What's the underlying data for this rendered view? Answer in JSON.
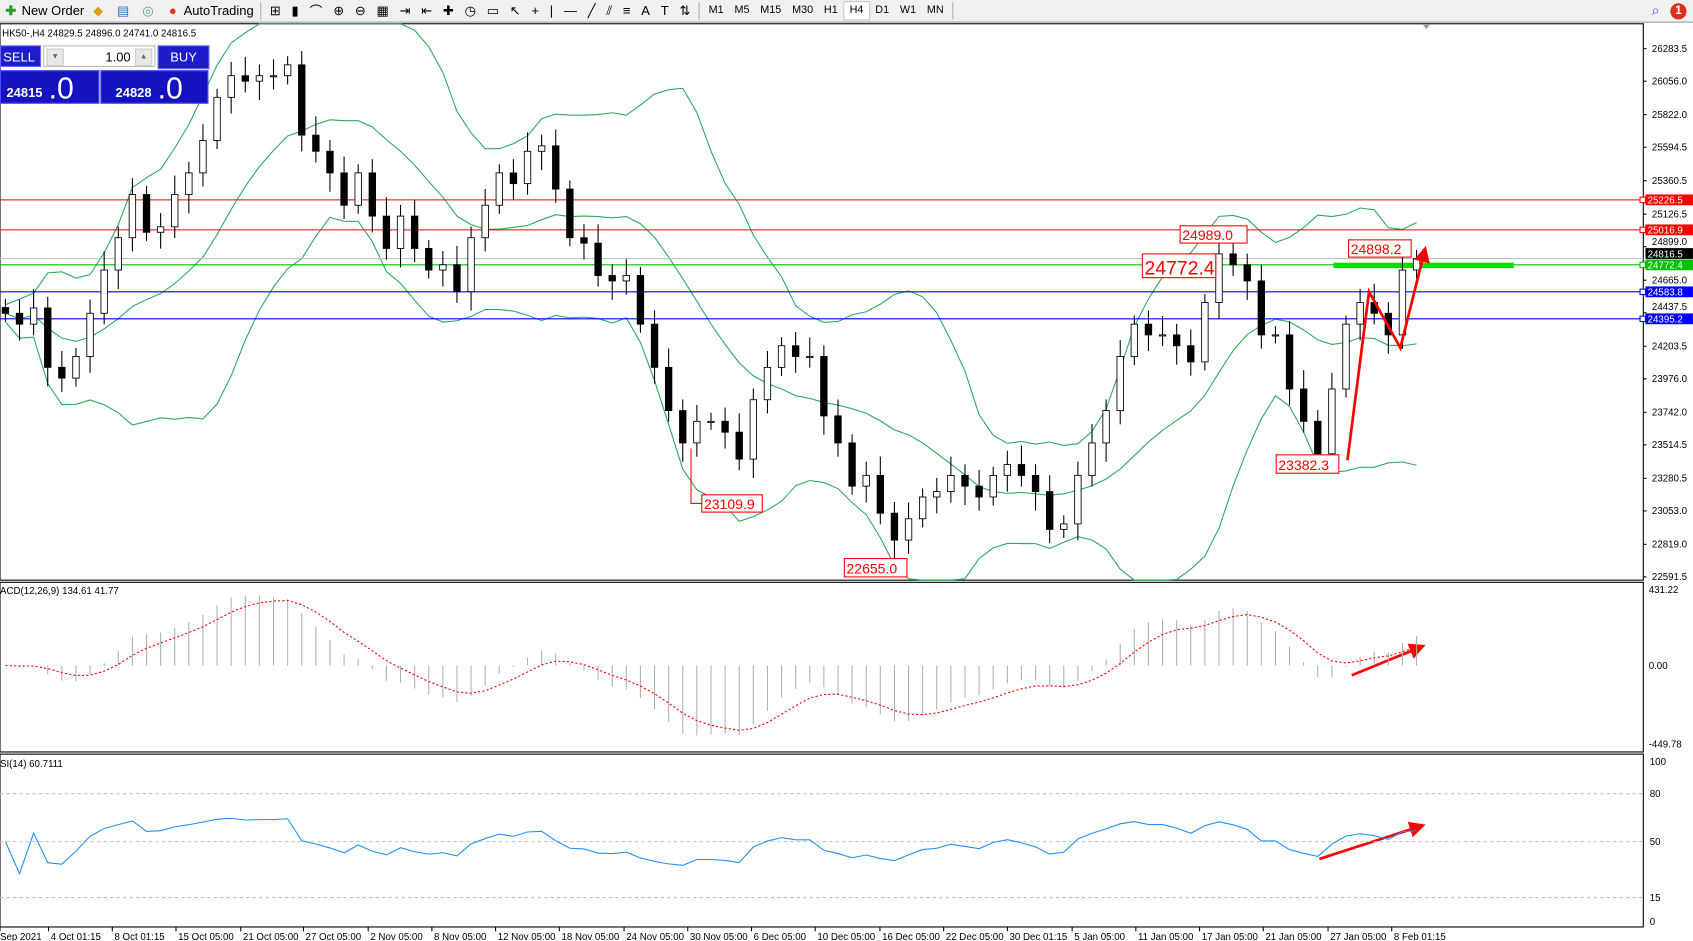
{
  "toolbar": {
    "new_order": "New Order",
    "autotrading": "AutoTrading",
    "icons": [
      "market-watch-icon",
      "data-window-icon",
      "navigator-icon",
      "bar-chart-icon",
      "candlestick-icon",
      "line-chart-icon",
      "zoom-in-icon",
      "zoom-out-icon",
      "tile-windows-icon",
      "chart-shift-icon",
      "autoscroll-icon",
      "indicators-icon",
      "periods-icon",
      "templates-icon",
      "cursor-icon",
      "crosshair-icon",
      "vertical-line-icon",
      "horizontal-line-icon",
      "trendline-icon",
      "equidistant-channel-icon",
      "fibonacci-icon",
      "text-icon",
      "text-label-icon",
      "arrows-icon"
    ],
    "timeframes": [
      "M1",
      "M5",
      "M15",
      "M30",
      "H1",
      "H4",
      "D1",
      "W1",
      "MN"
    ],
    "active_timeframe": "H4",
    "notification_count": "1"
  },
  "chart_info": "HK50-,H4  24829.5 24896.0 24741.0 24816.5",
  "trade_panel": {
    "sell_label": "SELL",
    "buy_label": "BUY",
    "volume": "1.00",
    "sell_price_small": "24815",
    "sell_price_big": ".0",
    "buy_price_small": "24828",
    "buy_price_big": ".0"
  },
  "chart_data": {
    "type": "candlestick",
    "symbol": "HK50-",
    "timeframe": "H4",
    "closes": [
      24434,
      24358,
      24471,
      24056,
      23981,
      24132,
      24434,
      24736,
      24962,
      25264,
      25000,
      25038,
      25264,
      25415,
      25641,
      25943,
      26094,
      26056,
      26094,
      26094,
      26170,
      25679,
      25566,
      25415,
      25189,
      25415,
      25113,
      24887,
      25113,
      24887,
      24736,
      24773,
      24585,
      24962,
      25189,
      25415,
      25340,
      25566,
      25604,
      25302,
      24962,
      24924,
      24698,
      24660,
      24698,
      24358,
      24056,
      23754,
      23528,
      23679,
      23679,
      23603,
      23415,
      23830,
      24056,
      24207,
      24132,
      24132,
      23717,
      23528,
      23226,
      23301,
      23037,
      22849,
      22998,
      23150,
      23188,
      23301,
      23226,
      23150,
      23301,
      23377,
      23301,
      23188,
      22924,
      22962,
      23301,
      23528,
      23754,
      24132,
      24358,
      24283,
      24283,
      24207,
      24094,
      24509,
      24849,
      24773,
      24660,
      24283,
      24283,
      23905,
      23679,
      23452,
      23905,
      24358,
      24509,
      24434,
      24283,
      24736,
      24816.5
    ],
    "price_axis_ticks": [
      "26283.5",
      "26056.0",
      "25822.0",
      "25594.5",
      "25360.5",
      "25126.5",
      "24899.0",
      "24665.0",
      "24437.5",
      "24203.5",
      "23976.0",
      "23742.0",
      "23514.5",
      "23280.5",
      "23053.0",
      "22819.0",
      "22591.5"
    ],
    "price_range": [
      22591.5,
      26283.5
    ],
    "current_price": "24816.5",
    "horizontal_levels": [
      {
        "value": "25226.5",
        "color": "#ff0000"
      },
      {
        "value": "25016.9",
        "color": "#ff0000"
      },
      {
        "value": "24772.4",
        "color": "#00c000"
      },
      {
        "value": "24583.8",
        "color": "#0000ff"
      },
      {
        "value": "24395.2",
        "color": "#0000ff"
      }
    ],
    "annotations": [
      {
        "text": "24989.0",
        "value": 24989.0
      },
      {
        "text": "24772.4",
        "value": 24772.4
      },
      {
        "text": "24898.2",
        "value": 24898.2
      },
      {
        "text": "23382.3",
        "value": 23382.3
      },
      {
        "text": "23109.9",
        "value": 23109.9
      },
      {
        "text": "22655.0",
        "value": 22655.0
      }
    ],
    "x_axis_labels": [
      "Sep 2021",
      "4 Oct 01:15",
      "8 Oct 01:15",
      "15 Oct 05:00",
      "21 Oct 05:00",
      "27 Oct 05:00",
      "2 Nov 05:00",
      "8 Nov 05:00",
      "12 Nov 05:00",
      "18 Nov 05:00",
      "24 Nov 05:00",
      "30 Nov 05:00",
      "6 Dec 05:00",
      "10 Dec 05:00",
      "16 Dec 05:00",
      "22 Dec 05:00",
      "30 Dec 01:15",
      "5 Jan 05:00",
      "11 Jan 05:00",
      "17 Jan 05:00",
      "21 Jan 05:00",
      "27 Jan 05:00",
      "8 Feb 01:15"
    ],
    "indicators": {
      "bollinger_color": "#2ea85a",
      "macd": {
        "label": "ACD(12,26,9) 134.61 41.77",
        "range": [
          -449.78,
          431.22
        ],
        "ticks": [
          "431.22",
          "0.00",
          "-449.78"
        ],
        "signal_color": "#ff0000",
        "histogram_color": "#b0b0b0"
      },
      "rsi": {
        "label": "SI(14) 60.7111",
        "ticks": [
          "100",
          "80",
          "50",
          "15",
          "0"
        ],
        "levels": [
          80,
          50,
          15
        ],
        "color": "#1e90ff"
      }
    },
    "arrow_color": "#ff0000"
  }
}
